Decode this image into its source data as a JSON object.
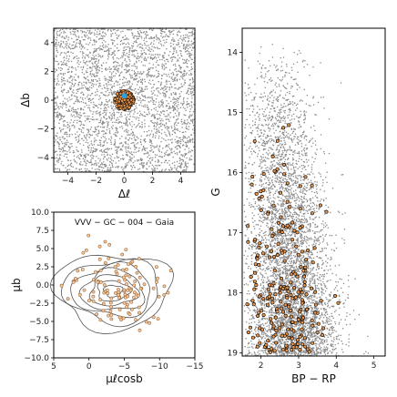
{
  "chart_data": [
    {
      "type": "scatter",
      "panel": "top-left",
      "xlabel": "Δℓ",
      "ylabel": "Δb",
      "xlim": [
        -5,
        5
      ],
      "ylim": [
        -5,
        5
      ],
      "xticks": [
        -4,
        -2,
        0,
        2,
        4
      ],
      "yticks": [
        -4,
        -2,
        0,
        2,
        4
      ],
      "xtick_labels": [
        "−4",
        "−2",
        "0",
        "2",
        "4"
      ],
      "ytick_labels": [
        "−4",
        "−2",
        "0",
        "2",
        "4"
      ],
      "background": {
        "color": "#8c8c8c",
        "distribution": "uniform",
        "x_range": [
          -5,
          5
        ],
        "y_range": [
          -5,
          5
        ]
      },
      "cluster": {
        "center": [
          0,
          0
        ],
        "radius": 0.7,
        "face_color": "#e8954c",
        "edge_color": "#000000"
      },
      "center_marker": {
        "x": 0,
        "y": 0.3,
        "color": "#2f9fd8"
      }
    },
    {
      "type": "scatter",
      "panel": "bottom-left",
      "xlabel": "μℓcosb",
      "ylabel": "μb",
      "xlim": [
        5,
        -15
      ],
      "ylim": [
        -10,
        10
      ],
      "xticks": [
        5,
        0,
        -5,
        -10,
        -15
      ],
      "yticks": [
        -10,
        -7.5,
        -5,
        -2.5,
        0,
        2.5,
        5,
        7.5,
        10
      ],
      "xtick_labels": [
        "5",
        "0",
        "−5",
        "−10",
        "−15"
      ],
      "ytick_labels": [
        "−10.0",
        "−7.5",
        "−5.0",
        "−2.5",
        "0.0",
        "2.5",
        "5.0",
        "7.5",
        "10.0"
      ],
      "annotation": "VVV − GC − 004  −  Gaia",
      "contours": {
        "color": "#555555",
        "center": [
          -3.4,
          -0.8
        ],
        "note": "density contours of field stars"
      },
      "members": {
        "face_color": "#f3c9a0",
        "edge_color": "#a06a3a",
        "center": [
          -4,
          -0.5
        ],
        "spread": [
          3.2,
          2.2
        ]
      }
    },
    {
      "type": "scatter",
      "panel": "right",
      "xlabel": "BP − RP",
      "ylabel": "G",
      "xlim": [
        1.5,
        5.3
      ],
      "ylim": [
        19.05,
        13.6
      ],
      "y_inverted": true,
      "xticks": [
        2,
        3,
        4,
        5
      ],
      "yticks": [
        14,
        15,
        16,
        17,
        18,
        19
      ],
      "xtick_labels": [
        "2",
        "3",
        "4",
        "5"
      ],
      "ytick_labels": [
        "14",
        "15",
        "16",
        "17",
        "18",
        "19"
      ],
      "field_color": "#8c8c8c",
      "members": {
        "face_color": "#e8954c",
        "edge_color": "#000000"
      }
    }
  ]
}
